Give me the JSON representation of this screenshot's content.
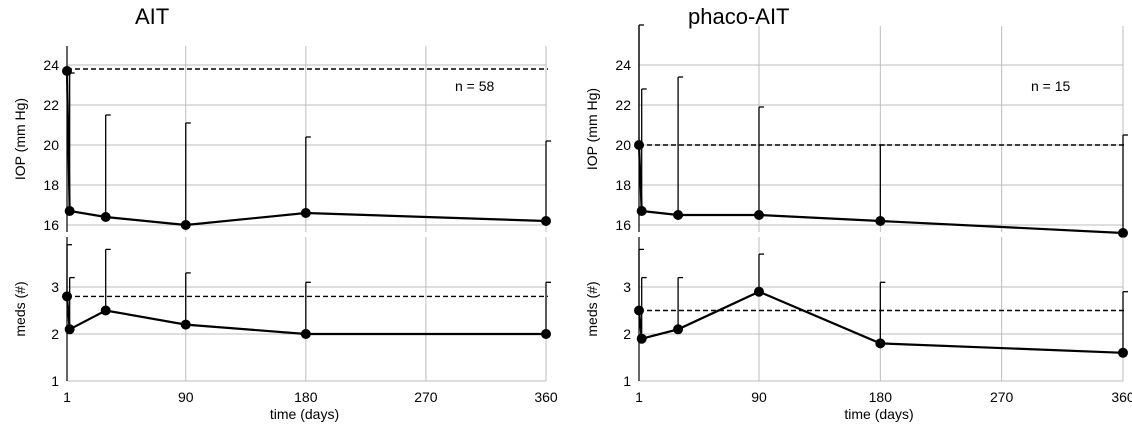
{
  "panels": [
    {
      "title": "AIT"
    },
    {
      "title": "phaco-AIT"
    }
  ],
  "chart_data": [
    {
      "type": "line",
      "panel": "AIT",
      "subplot": "IOP",
      "title": "AIT",
      "xlabel": "time (days)",
      "ylabel": "IOP (mm Hg)",
      "annotation": "n = 58",
      "xlim": [
        1,
        360
      ],
      "xticks": [
        1,
        90,
        180,
        270,
        360
      ],
      "ylim": [
        16,
        24
      ],
      "yticks": [
        16,
        18,
        20,
        22,
        24
      ],
      "x": [
        1,
        3,
        30,
        90,
        180,
        360
      ],
      "y": [
        23.7,
        16.7,
        16.4,
        16.0,
        16.6,
        16.2
      ],
      "error_upper": [
        null,
        23.6,
        21.5,
        21.1,
        20.4,
        20.2
      ],
      "baseline": 23.8
    },
    {
      "type": "line",
      "panel": "AIT",
      "subplot": "meds",
      "xlabel": "time (days)",
      "ylabel": "meds (#)",
      "xlim": [
        1,
        360
      ],
      "xticks": [
        1,
        90,
        180,
        270,
        360
      ],
      "ylim": [
        1,
        3
      ],
      "yticks": [
        1,
        2,
        3
      ],
      "x": [
        1,
        3,
        30,
        90,
        180,
        360
      ],
      "y": [
        2.8,
        2.1,
        2.5,
        2.2,
        2.0,
        2.0
      ],
      "error_upper": [
        3.9,
        3.2,
        3.8,
        3.3,
        3.1,
        3.1
      ],
      "baseline": 2.8
    },
    {
      "type": "line",
      "panel": "phaco-AIT",
      "subplot": "IOP",
      "title": "phaco-AIT",
      "xlabel": "time (days)",
      "ylabel": "IOP (mm Hg)",
      "annotation": "n = 15",
      "xlim": [
        1,
        360
      ],
      "xticks": [
        1,
        90,
        180,
        270,
        360
      ],
      "ylim": [
        16,
        24
      ],
      "yticks": [
        16,
        18,
        20,
        22,
        24
      ],
      "x": [
        1,
        3,
        30,
        90,
        180,
        360
      ],
      "y": [
        20.0,
        16.7,
        16.5,
        16.5,
        16.2,
        15.6
      ],
      "error_upper": [
        26.0,
        22.8,
        23.4,
        21.9,
        20.0,
        20.5
      ],
      "baseline": 20.0
    },
    {
      "type": "line",
      "panel": "phaco-AIT",
      "subplot": "meds",
      "xlabel": "time (days)",
      "ylabel": "meds (#)",
      "xlim": [
        1,
        360
      ],
      "xticks": [
        1,
        90,
        180,
        270,
        360
      ],
      "ylim": [
        1,
        3
      ],
      "yticks": [
        1,
        2,
        3
      ],
      "x": [
        1,
        3,
        30,
        90,
        180,
        360
      ],
      "y": [
        2.5,
        1.9,
        2.1,
        2.9,
        1.8,
        1.6
      ],
      "error_upper": [
        3.8,
        3.2,
        3.2,
        3.7,
        3.1,
        2.9
      ],
      "baseline": 2.5
    }
  ]
}
